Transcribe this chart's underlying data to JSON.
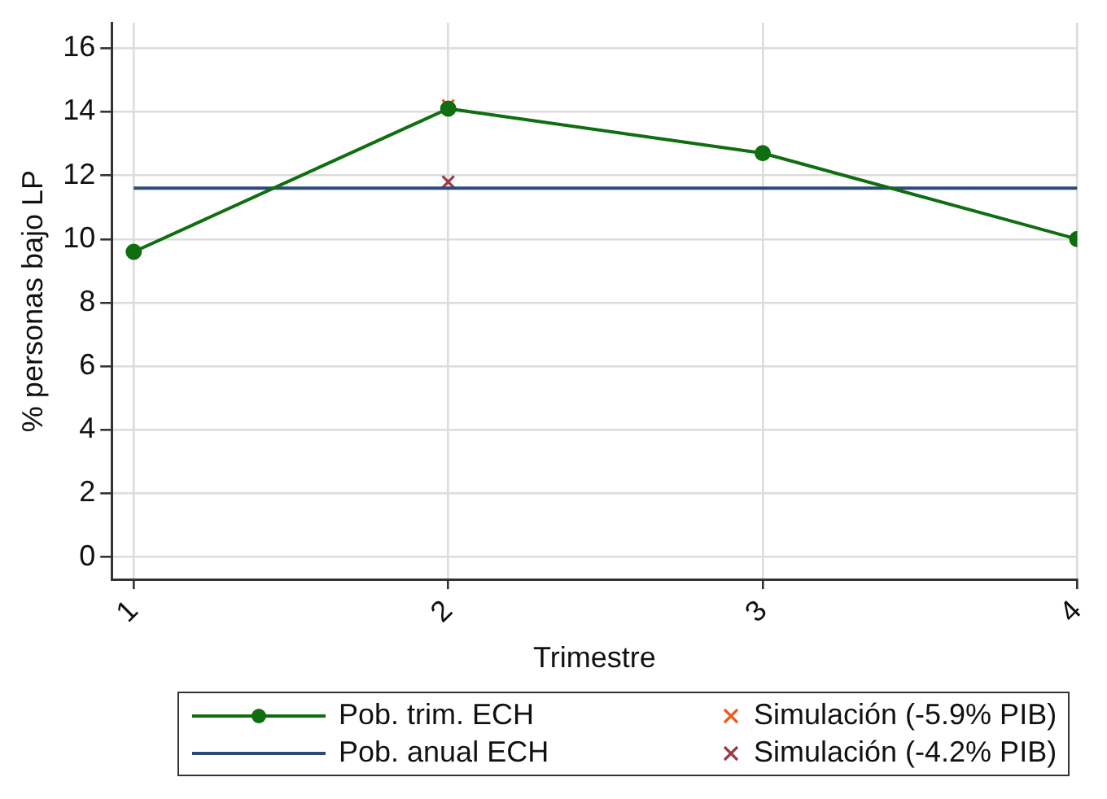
{
  "chart_data": {
    "type": "line",
    "xlabel": "Trimestre",
    "ylabel": "% personas bajo LP",
    "x": [
      1,
      2,
      3,
      4
    ],
    "xlim": [
      0.93,
      4
    ],
    "xticks": [
      1,
      2,
      3,
      4
    ],
    "ylim": [
      -0.7,
      16.8
    ],
    "yticks": [
      0,
      2,
      4,
      6,
      8,
      10,
      12,
      14,
      16
    ],
    "grid": true,
    "legend": "bottom",
    "series": [
      {
        "name": "Pob. trim. ECH",
        "color": "#0f6e0f",
        "marker": "circle",
        "values": [
          9.6,
          14.1,
          12.7,
          10.0
        ]
      },
      {
        "name": "Pob. anual ECH",
        "color": "#2c4a78",
        "marker": "none",
        "values": [
          11.6,
          11.6,
          11.6,
          11.6
        ]
      },
      {
        "name": "Simulación (-5.9% PIB)",
        "type": "scatter",
        "color": "#f0581c",
        "marker": "cross",
        "x": [
          2
        ],
        "values": [
          14.2
        ]
      },
      {
        "name": "Simulación (-4.2% PIB)",
        "type": "scatter",
        "color": "#9c3a44",
        "marker": "cross",
        "x": [
          2
        ],
        "values": [
          11.8
        ]
      }
    ]
  }
}
